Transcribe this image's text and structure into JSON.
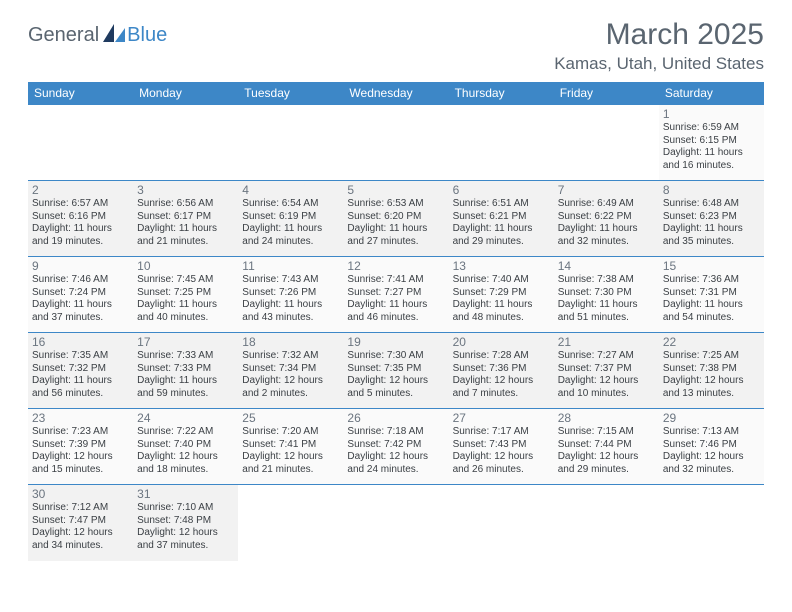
{
  "brand": {
    "part1": "General",
    "part2": "Blue"
  },
  "title": "March 2025",
  "location": "Kamas, Utah, United States",
  "colors": {
    "header_bg": "#3d87c7",
    "header_text": "#ffffff",
    "text_muted": "#5a6570",
    "text_body": "#3a3f44",
    "row_border": "#3d87c7",
    "row_even_bg": "#f2f2f2",
    "row_odd_bg": "#fafafa"
  },
  "day_headers": [
    "Sunday",
    "Monday",
    "Tuesday",
    "Wednesday",
    "Thursday",
    "Friday",
    "Saturday"
  ],
  "weeks": [
    [
      null,
      null,
      null,
      null,
      null,
      null,
      {
        "n": "1",
        "sr": "Sunrise: 6:59 AM",
        "ss": "Sunset: 6:15 PM",
        "d1": "Daylight: 11 hours",
        "d2": "and 16 minutes."
      }
    ],
    [
      {
        "n": "2",
        "sr": "Sunrise: 6:57 AM",
        "ss": "Sunset: 6:16 PM",
        "d1": "Daylight: 11 hours",
        "d2": "and 19 minutes."
      },
      {
        "n": "3",
        "sr": "Sunrise: 6:56 AM",
        "ss": "Sunset: 6:17 PM",
        "d1": "Daylight: 11 hours",
        "d2": "and 21 minutes."
      },
      {
        "n": "4",
        "sr": "Sunrise: 6:54 AM",
        "ss": "Sunset: 6:19 PM",
        "d1": "Daylight: 11 hours",
        "d2": "and 24 minutes."
      },
      {
        "n": "5",
        "sr": "Sunrise: 6:53 AM",
        "ss": "Sunset: 6:20 PM",
        "d1": "Daylight: 11 hours",
        "d2": "and 27 minutes."
      },
      {
        "n": "6",
        "sr": "Sunrise: 6:51 AM",
        "ss": "Sunset: 6:21 PM",
        "d1": "Daylight: 11 hours",
        "d2": "and 29 minutes."
      },
      {
        "n": "7",
        "sr": "Sunrise: 6:49 AM",
        "ss": "Sunset: 6:22 PM",
        "d1": "Daylight: 11 hours",
        "d2": "and 32 minutes."
      },
      {
        "n": "8",
        "sr": "Sunrise: 6:48 AM",
        "ss": "Sunset: 6:23 PM",
        "d1": "Daylight: 11 hours",
        "d2": "and 35 minutes."
      }
    ],
    [
      {
        "n": "9",
        "sr": "Sunrise: 7:46 AM",
        "ss": "Sunset: 7:24 PM",
        "d1": "Daylight: 11 hours",
        "d2": "and 37 minutes."
      },
      {
        "n": "10",
        "sr": "Sunrise: 7:45 AM",
        "ss": "Sunset: 7:25 PM",
        "d1": "Daylight: 11 hours",
        "d2": "and 40 minutes."
      },
      {
        "n": "11",
        "sr": "Sunrise: 7:43 AM",
        "ss": "Sunset: 7:26 PM",
        "d1": "Daylight: 11 hours",
        "d2": "and 43 minutes."
      },
      {
        "n": "12",
        "sr": "Sunrise: 7:41 AM",
        "ss": "Sunset: 7:27 PM",
        "d1": "Daylight: 11 hours",
        "d2": "and 46 minutes."
      },
      {
        "n": "13",
        "sr": "Sunrise: 7:40 AM",
        "ss": "Sunset: 7:29 PM",
        "d1": "Daylight: 11 hours",
        "d2": "and 48 minutes."
      },
      {
        "n": "14",
        "sr": "Sunrise: 7:38 AM",
        "ss": "Sunset: 7:30 PM",
        "d1": "Daylight: 11 hours",
        "d2": "and 51 minutes."
      },
      {
        "n": "15",
        "sr": "Sunrise: 7:36 AM",
        "ss": "Sunset: 7:31 PM",
        "d1": "Daylight: 11 hours",
        "d2": "and 54 minutes."
      }
    ],
    [
      {
        "n": "16",
        "sr": "Sunrise: 7:35 AM",
        "ss": "Sunset: 7:32 PM",
        "d1": "Daylight: 11 hours",
        "d2": "and 56 minutes."
      },
      {
        "n": "17",
        "sr": "Sunrise: 7:33 AM",
        "ss": "Sunset: 7:33 PM",
        "d1": "Daylight: 11 hours",
        "d2": "and 59 minutes."
      },
      {
        "n": "18",
        "sr": "Sunrise: 7:32 AM",
        "ss": "Sunset: 7:34 PM",
        "d1": "Daylight: 12 hours",
        "d2": "and 2 minutes."
      },
      {
        "n": "19",
        "sr": "Sunrise: 7:30 AM",
        "ss": "Sunset: 7:35 PM",
        "d1": "Daylight: 12 hours",
        "d2": "and 5 minutes."
      },
      {
        "n": "20",
        "sr": "Sunrise: 7:28 AM",
        "ss": "Sunset: 7:36 PM",
        "d1": "Daylight: 12 hours",
        "d2": "and 7 minutes."
      },
      {
        "n": "21",
        "sr": "Sunrise: 7:27 AM",
        "ss": "Sunset: 7:37 PM",
        "d1": "Daylight: 12 hours",
        "d2": "and 10 minutes."
      },
      {
        "n": "22",
        "sr": "Sunrise: 7:25 AM",
        "ss": "Sunset: 7:38 PM",
        "d1": "Daylight: 12 hours",
        "d2": "and 13 minutes."
      }
    ],
    [
      {
        "n": "23",
        "sr": "Sunrise: 7:23 AM",
        "ss": "Sunset: 7:39 PM",
        "d1": "Daylight: 12 hours",
        "d2": "and 15 minutes."
      },
      {
        "n": "24",
        "sr": "Sunrise: 7:22 AM",
        "ss": "Sunset: 7:40 PM",
        "d1": "Daylight: 12 hours",
        "d2": "and 18 minutes."
      },
      {
        "n": "25",
        "sr": "Sunrise: 7:20 AM",
        "ss": "Sunset: 7:41 PM",
        "d1": "Daylight: 12 hours",
        "d2": "and 21 minutes."
      },
      {
        "n": "26",
        "sr": "Sunrise: 7:18 AM",
        "ss": "Sunset: 7:42 PM",
        "d1": "Daylight: 12 hours",
        "d2": "and 24 minutes."
      },
      {
        "n": "27",
        "sr": "Sunrise: 7:17 AM",
        "ss": "Sunset: 7:43 PM",
        "d1": "Daylight: 12 hours",
        "d2": "and 26 minutes."
      },
      {
        "n": "28",
        "sr": "Sunrise: 7:15 AM",
        "ss": "Sunset: 7:44 PM",
        "d1": "Daylight: 12 hours",
        "d2": "and 29 minutes."
      },
      {
        "n": "29",
        "sr": "Sunrise: 7:13 AM",
        "ss": "Sunset: 7:46 PM",
        "d1": "Daylight: 12 hours",
        "d2": "and 32 minutes."
      }
    ],
    [
      {
        "n": "30",
        "sr": "Sunrise: 7:12 AM",
        "ss": "Sunset: 7:47 PM",
        "d1": "Daylight: 12 hours",
        "d2": "and 34 minutes."
      },
      {
        "n": "31",
        "sr": "Sunrise: 7:10 AM",
        "ss": "Sunset: 7:48 PM",
        "d1": "Daylight: 12 hours",
        "d2": "and 37 minutes."
      },
      null,
      null,
      null,
      null,
      null
    ]
  ]
}
